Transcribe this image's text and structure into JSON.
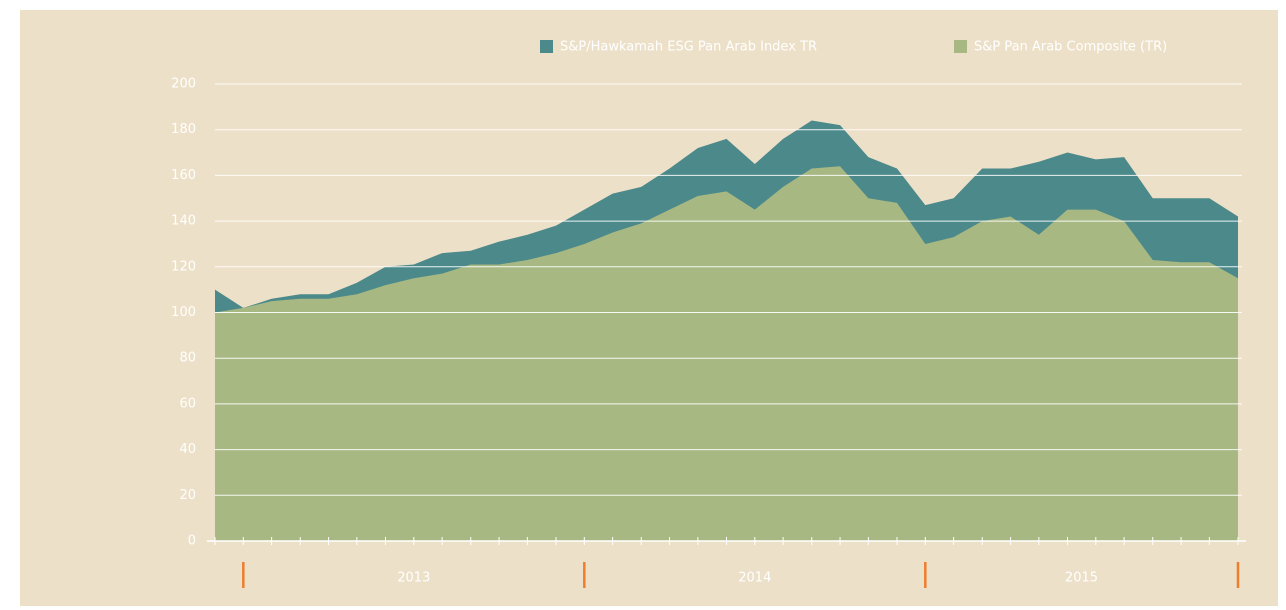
{
  "chart_data": {
    "type": "area",
    "x": [
      2012.917,
      2013,
      2013.083,
      2013.167,
      2013.25,
      2013.333,
      2013.417,
      2013.5,
      2013.583,
      2013.667,
      2013.75,
      2013.833,
      2013.917,
      2014,
      2014.083,
      2014.167,
      2014.25,
      2014.333,
      2014.417,
      2014.5,
      2014.583,
      2014.667,
      2014.75,
      2014.833,
      2014.917,
      2015,
      2015.083,
      2015.167,
      2015.25,
      2015.333,
      2015.417,
      2015.5,
      2015.583,
      2015.667,
      2015.75,
      2015.833,
      2015.917
    ],
    "series": [
      {
        "name": "S&P/Hawkamah ESG Pan Arab Index TR",
        "color": "#4b898b",
        "values": [
          110,
          102,
          106,
          108,
          108,
          113,
          120,
          121,
          126,
          127,
          131,
          134,
          138,
          145,
          152,
          155,
          163,
          172,
          176,
          165,
          176,
          184,
          182,
          168,
          163,
          147,
          150,
          163,
          163,
          166,
          170,
          167,
          168,
          150,
          150,
          150,
          142
        ]
      },
      {
        "name": "S&P Pan Arab Composite (TR)",
        "color": "#a7b882",
        "values": [
          100,
          102,
          105,
          106,
          106,
          108,
          112,
          115,
          117,
          121,
          121,
          123,
          126,
          130,
          135,
          139,
          145,
          151,
          153,
          145,
          155,
          163,
          164,
          150,
          148,
          130,
          133,
          140,
          142,
          134,
          145,
          145,
          140,
          123,
          122,
          122,
          115
        ]
      }
    ],
    "xlim": [
      2012.917,
      2015.917
    ],
    "xticks": [
      2012.917,
      2013,
      2013.083,
      2013.167,
      2013.25,
      2013.333,
      2013.417,
      2013.5,
      2013.583,
      2013.667,
      2013.75,
      2013.833,
      2013.917,
      2014,
      2014.083,
      2014.167,
      2014.25,
      2014.333,
      2014.417,
      2014.5,
      2014.583,
      2014.667,
      2014.75,
      2014.833,
      2014.917,
      2015,
      2015.083,
      2015.167,
      2015.25,
      2015.333,
      2015.417,
      2015.5,
      2015.583,
      2015.667,
      2015.75,
      2015.833,
      2015.917
    ],
    "year_marks": [
      2013,
      2014,
      2015,
      2015.917
    ],
    "year_labels": [
      {
        "value": 2013.5,
        "label": "2013"
      },
      {
        "value": 2014.5,
        "label": "2014"
      },
      {
        "value": 2015.458,
        "label": "2015"
      }
    ],
    "ylim": [
      0,
      200
    ],
    "yticks": [
      0,
      20,
      40,
      60,
      80,
      100,
      120,
      140,
      160,
      180,
      200
    ],
    "grid": true,
    "legend": "top-right"
  }
}
